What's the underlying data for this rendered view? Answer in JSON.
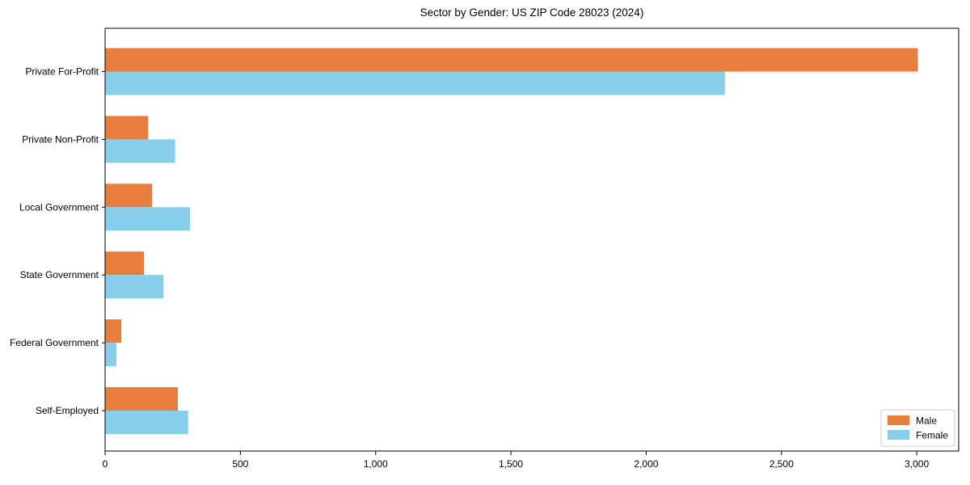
{
  "figure": {
    "background_color": "#ffffff"
  },
  "chart_data": {
    "type": "bar",
    "orientation": "horizontal",
    "title": "Sector by Gender: US ZIP Code 28023 (2024)",
    "xlabel": "",
    "ylabel": "",
    "categories": [
      "Private For-Profit",
      "Private Non-Profit",
      "Local Government",
      "State Government",
      "Federal Government",
      "Self-Employed"
    ],
    "series": [
      {
        "name": "Male",
        "color": "#e87d3c",
        "values": [
          3004,
          159,
          174,
          144,
          60,
          269
        ]
      },
      {
        "name": "Female",
        "color": "#87ceeb",
        "values": [
          2291,
          259,
          314,
          216,
          42,
          307
        ]
      }
    ],
    "xlim": [
      0,
      3155
    ],
    "xticks": [
      0,
      500,
      1000,
      1500,
      2000,
      2500,
      3000
    ],
    "xtick_labels": [
      "0",
      "500",
      "1,000",
      "1,500",
      "2,000",
      "2,500",
      "3,000"
    ],
    "grid": false,
    "legend": {
      "position": "lower right",
      "entries": [
        "Male",
        "Female"
      ],
      "border_color": "#cccccc",
      "background_color": "#ffffff"
    },
    "frame_color": "#000000"
  }
}
